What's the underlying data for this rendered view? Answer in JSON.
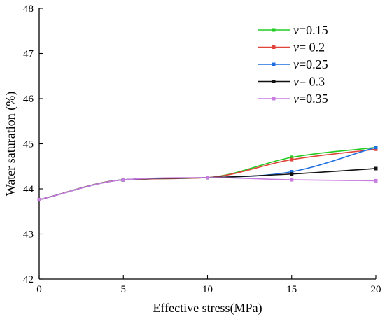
{
  "chart_data": {
    "type": "line",
    "title": "",
    "xlabel": "Effective stress(MPa)",
    "ylabel": "Water saturation (%)",
    "xlim": [
      0,
      20
    ],
    "ylim": [
      42,
      48
    ],
    "x_ticks": [
      0,
      5,
      10,
      15,
      20
    ],
    "y_ticks": [
      42,
      43,
      44,
      45,
      46,
      47,
      48
    ],
    "grid": false,
    "legend_position": "top-right",
    "x": [
      0,
      5,
      10,
      15,
      20
    ],
    "series": [
      {
        "name": "v=0.15",
        "legend_var": "v",
        "legend_value": "=0.15",
        "color": "#22cc22",
        "values": [
          43.76,
          44.2,
          44.25,
          44.7,
          44.92
        ]
      },
      {
        "name": "v= 0.2",
        "legend_var": "v",
        "legend_value": "= 0.2",
        "color": "#e0443a",
        "values": [
          43.76,
          44.2,
          44.25,
          44.65,
          44.88
        ]
      },
      {
        "name": "v=0.25",
        "legend_var": "v",
        "legend_value": "=0.25",
        "color": "#1f6fe0",
        "values": [
          43.76,
          44.2,
          44.25,
          44.38,
          44.92
        ]
      },
      {
        "name": "v= 0.3",
        "legend_var": "v",
        "legend_value": "= 0.3",
        "color": "#111111",
        "values": [
          43.76,
          44.2,
          44.25,
          44.33,
          44.45
        ]
      },
      {
        "name": "v=0.35",
        "legend_var": "v",
        "legend_value": "=0.35",
        "color": "#c77de0",
        "values": [
          43.76,
          44.2,
          44.25,
          44.2,
          44.18
        ]
      }
    ]
  }
}
